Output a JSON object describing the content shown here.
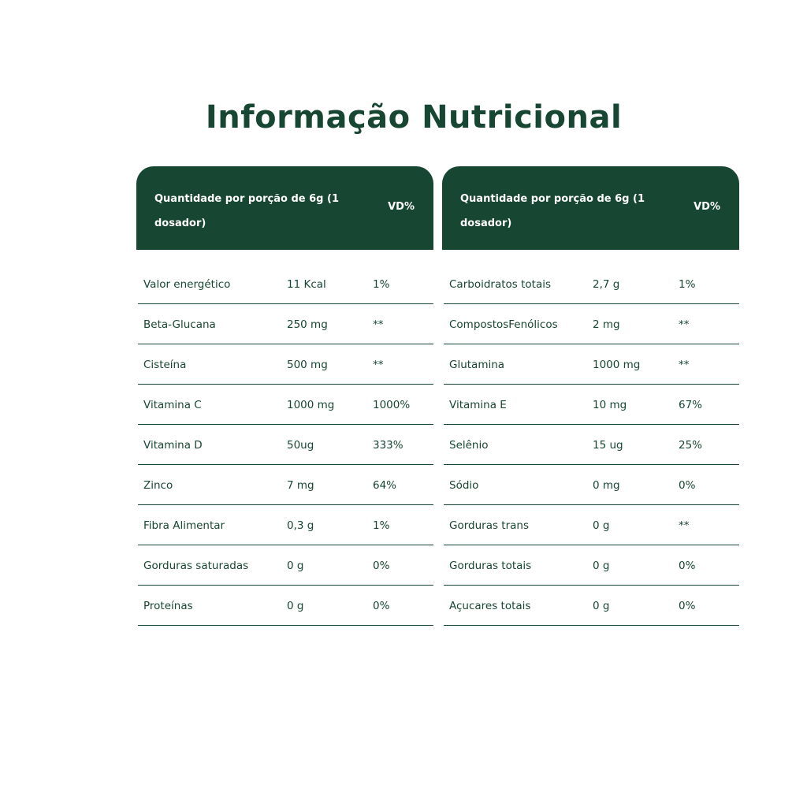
{
  "title": "Informação Nutricional",
  "tables": [
    {
      "header": {
        "label": "Quantidade por porção de 6g (1 dosador)",
        "vd": "VD%"
      },
      "rows": [
        [
          "Valor energético",
          "11 Kcal",
          "1%"
        ],
        [
          "Beta-Glucana",
          "250 mg",
          "**"
        ],
        [
          "Cisteína",
          "500 mg",
          "**"
        ],
        [
          "Vitamina C",
          "1000 mg",
          "1000%"
        ],
        [
          "Vitamina D",
          "50ug",
          "333%"
        ],
        [
          "Zinco",
          "7 mg",
          "64%"
        ],
        [
          "Fibra Alimentar",
          "0,3 g",
          "1%"
        ],
        [
          "Gorduras saturadas",
          "0 g",
          "0%"
        ],
        [
          "Proteínas",
          "0 g",
          "0%"
        ]
      ]
    },
    {
      "header": {
        "label": "Quantidade por porção de 6g (1 dosador)",
        "vd": "VD%"
      },
      "rows": [
        [
          "Carboidratos totais",
          "2,7 g",
          "1%"
        ],
        [
          "CompostosFenólicos",
          "2 mg",
          "**"
        ],
        [
          "Glutamina",
          "1000 mg",
          "**"
        ],
        [
          "Vitamina E",
          "10 mg",
          "67%"
        ],
        [
          "Selênio",
          "15 ug",
          "25%"
        ],
        [
          "Sódio",
          "0 mg",
          "0%"
        ],
        [
          "Gorduras trans",
          "0 g",
          "**"
        ],
        [
          "Gorduras totais",
          "0 g",
          "0%"
        ],
        [
          "Açucares totais",
          "0 g",
          "0%"
        ]
      ]
    }
  ]
}
